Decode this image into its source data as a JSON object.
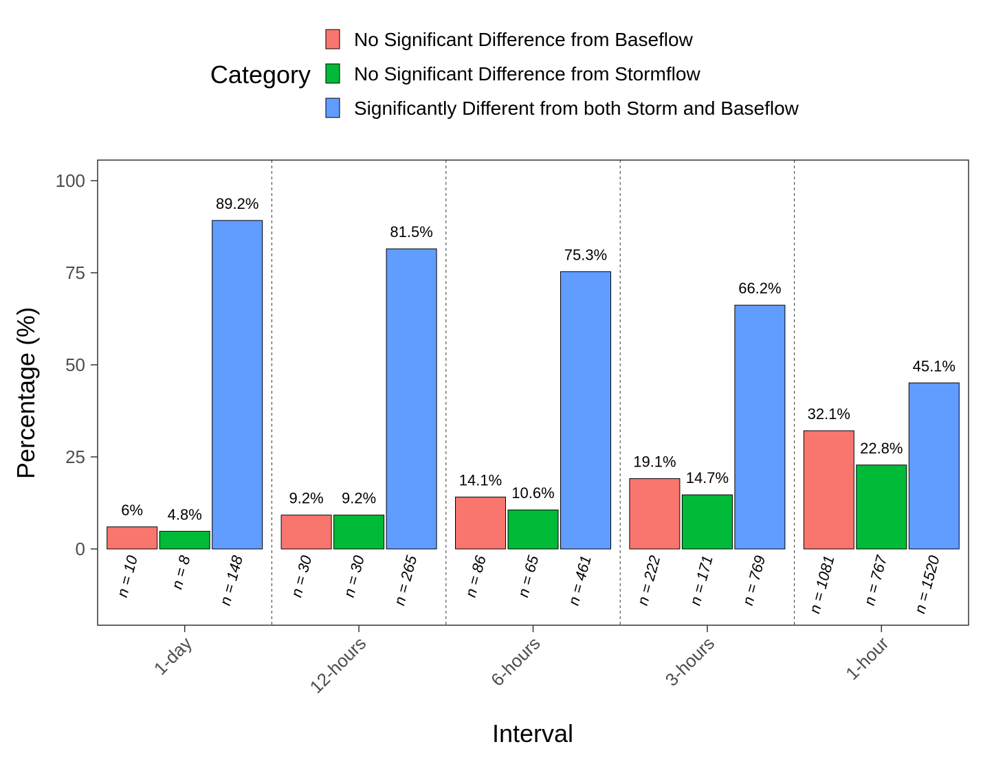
{
  "chart_data": {
    "type": "bar",
    "xlabel": "Interval",
    "ylabel": "Percentage (%)",
    "ylim": [
      0,
      100
    ],
    "yticks": [
      0,
      25,
      50,
      75,
      100
    ],
    "grid": false,
    "legend": {
      "title": "Category",
      "placement": "top"
    },
    "categories": [
      "1-day",
      "12-hours",
      "6-hours",
      "3-hours",
      "1-hour"
    ],
    "series": [
      {
        "name": "No Significant Difference from Baseflow",
        "color": "#F8766D",
        "values": [
          6,
          9.2,
          14.1,
          19.1,
          32.1
        ],
        "labels": [
          "6%",
          "9.2%",
          "14.1%",
          "19.1%",
          "32.1%"
        ],
        "n_labels": [
          "n = 10",
          "n = 30",
          "n = 86",
          "n = 222",
          "n = 1081"
        ]
      },
      {
        "name": "No Significant Difference from Stormflow",
        "color": "#00BA38",
        "values": [
          4.8,
          9.2,
          10.6,
          14.7,
          22.8
        ],
        "labels": [
          "4.8%",
          "9.2%",
          "10.6%",
          "14.7%",
          "22.8%"
        ],
        "n_labels": [
          "n = 8",
          "n = 30",
          "n = 65",
          "n = 171",
          "n = 767"
        ]
      },
      {
        "name": "Significantly Different from both Storm and Baseflow",
        "color": "#619CFF",
        "values": [
          89.2,
          81.5,
          75.3,
          66.2,
          45.1
        ],
        "labels": [
          "89.2%",
          "81.5%",
          "75.3%",
          "66.2%",
          "45.1%"
        ],
        "n_labels": [
          "n = 148",
          "n = 265",
          "n = 461",
          "n = 769",
          "n = 1520"
        ]
      }
    ]
  }
}
